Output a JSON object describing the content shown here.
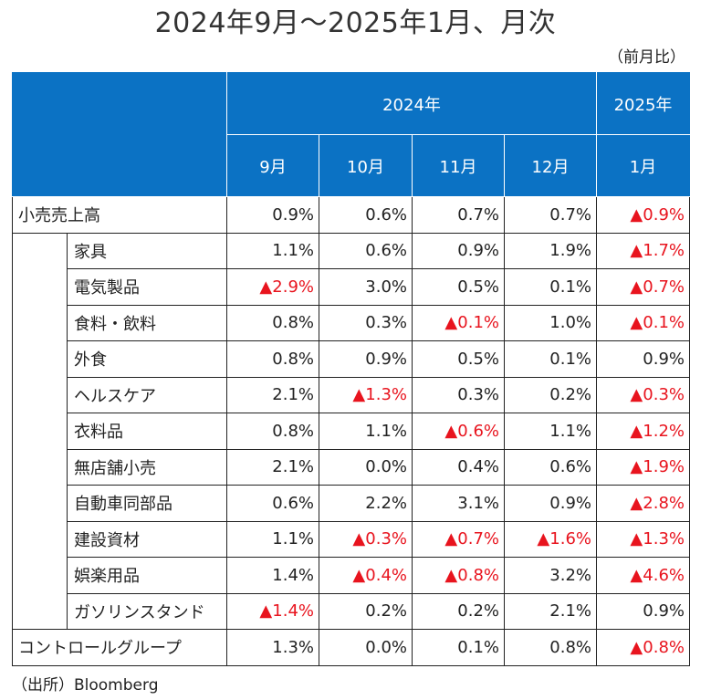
{
  "title": "2024年9月～2025年1月、月次",
  "unit": "（前月比）",
  "source": "（出所）Bloomberg",
  "colors": {
    "header_bg": "#0b72c4",
    "negative_text": "#e8141e"
  },
  "header": {
    "year_2024": "2024年",
    "year_2025": "2025年",
    "months": [
      "9月",
      "10月",
      "11月",
      "12月",
      "1月"
    ]
  },
  "rows": [
    {
      "label": "小売売上高",
      "values": [
        "0.9%",
        "0.6%",
        "0.7%",
        "0.7%",
        "▲0.9%"
      ]
    },
    {
      "label": "家具",
      "values": [
        "1.1%",
        "0.6%",
        "0.9%",
        "1.9%",
        "▲1.7%"
      ]
    },
    {
      "label": "電気製品",
      "values": [
        "▲2.9%",
        "3.0%",
        "0.5%",
        "0.1%",
        "▲0.7%"
      ]
    },
    {
      "label": "食料・飲料",
      "values": [
        "0.8%",
        "0.3%",
        "▲0.1%",
        "1.0%",
        "▲0.1%"
      ]
    },
    {
      "label": "外食",
      "values": [
        "0.8%",
        "0.9%",
        "0.5%",
        "0.1%",
        "0.9%"
      ]
    },
    {
      "label": "ヘルスケア",
      "values": [
        "2.1%",
        "▲1.3%",
        "0.3%",
        "0.2%",
        "▲0.3%"
      ]
    },
    {
      "label": "衣料品",
      "values": [
        "0.8%",
        "1.1%",
        "▲0.6%",
        "1.1%",
        "▲1.2%"
      ]
    },
    {
      "label": "無店舗小売",
      "values": [
        "2.1%",
        "0.0%",
        "0.4%",
        "0.6%",
        "▲1.9%"
      ]
    },
    {
      "label": "自動車同部品",
      "values": [
        "0.6%",
        "2.2%",
        "3.1%",
        "0.9%",
        "▲2.8%"
      ]
    },
    {
      "label": "建設資材",
      "values": [
        "1.1%",
        "▲0.3%",
        "▲0.7%",
        "▲1.6%",
        "▲1.3%"
      ]
    },
    {
      "label": "娯楽用品",
      "values": [
        "1.4%",
        "▲0.4%",
        "▲0.8%",
        "3.2%",
        "▲4.6%"
      ]
    },
    {
      "label": "ガソリンスタンド",
      "values": [
        "▲1.4%",
        "0.2%",
        "0.2%",
        "2.1%",
        "0.9%"
      ]
    },
    {
      "label": "コントロールグループ",
      "values": [
        "1.3%",
        "0.0%",
        "0.1%",
        "0.8%",
        "▲0.8%"
      ]
    }
  ]
}
